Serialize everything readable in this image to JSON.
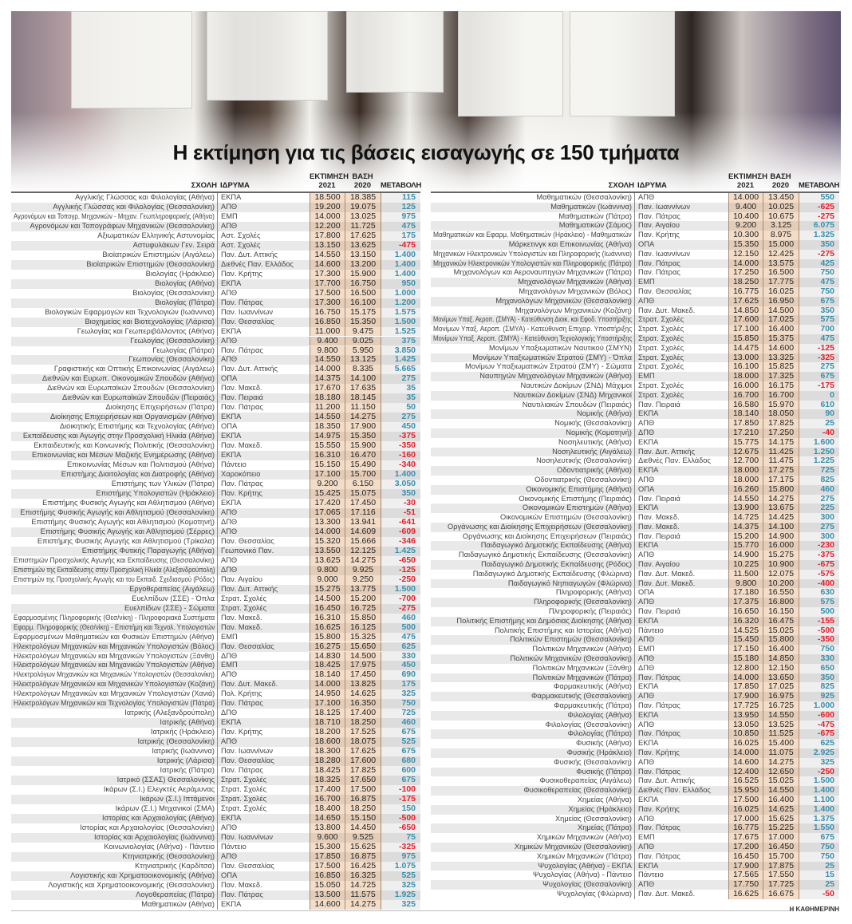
{
  "title": "Η εκτίμηση για τις βάσεις εισαγωγής σε 150 τμήματα",
  "headers": {
    "school": "ΣΧΟΛΗ",
    "institution": "ΙΔΡΥΜΑ",
    "estimate": "ΕΚΤΙΜΗΣΗ 2021",
    "base": "ΒΑΣΗ 2020",
    "change": "ΜΕΤΑΒΟΛΗ"
  },
  "colors": {
    "positive": "#3b8fac",
    "negative": "#e3202b",
    "estimate_column": "#f3ddc8"
  },
  "footer": "Η ΚΑΘΗΜΕΡΙΝΗ",
  "left_rows": [
    [
      "Αγγλικής Γλώσσας και Φιλολογίας (Αθήνα)",
      "ΕΚΠΑ",
      "18.500",
      "18.385",
      "115"
    ],
    [
      "Αγγλικής Γλώσσας και Φιλολογίας (Θεσσαλονίκη)",
      "ΑΠΘ",
      "19.200",
      "19.075",
      "125"
    ],
    [
      "Αγρονόμων και Τοπογρ. Μηχανικών - Μηχαν. Γεωπληροφορικής (Αθήνα)",
      "ΕΜΠ",
      "14.000",
      "13.025",
      "975"
    ],
    [
      "Αγρονόμων και Τοπογράφων Μηχανικών (Θεσσαλονίκη)",
      "ΑΠΘ",
      "12.200",
      "11.725",
      "475"
    ],
    [
      "Αξιωματικών Ελληνικής Αστυνομίας",
      "Αστ. Σχολές",
      "17.800",
      "17.625",
      "175"
    ],
    [
      "Αστυφυλάκων Γεν. Σειρά",
      "Αστ. Σχολές",
      "13.150",
      "13.625",
      "-475"
    ],
    [
      "Βιοϊατρικών Επιστημών (Αιγάλεω)",
      "Παν. Δυτ. Αττικής",
      "14.550",
      "13.150",
      "1.400"
    ],
    [
      "Βιοϊατρικών Επιστημών (Θεσσαλονίκη)",
      "Διεθνές Παν. Ελλάδος",
      "14.600",
      "13.200",
      "1.400"
    ],
    [
      "Βιολογίας  (Ηράκλειο)",
      "Παν. Κρήτης",
      "17.300",
      "15.900",
      "1.400"
    ],
    [
      "Βιολογίας (Αθήνα)",
      "ΕΚΠΑ",
      "17.700",
      "16.750",
      "950"
    ],
    [
      "Βιολογίας (Θεσσαλονίκη)",
      "ΑΠΘ",
      "17.500",
      "16.500",
      "1.000"
    ],
    [
      "Βιολογίας (Πάτρα)",
      "Παν. Πάτρας",
      "17.300",
      "16.100",
      "1.200"
    ],
    [
      "Βιολογικών Εφαρμογών και Τεχνολογιών (Ιωάννινα)",
      "Παν. Ιωαννίνων",
      "16.750",
      "15.175",
      "1.575"
    ],
    [
      "Βιοχημείας και Βιοτεχνολογίας (Λάρισα)",
      "Παν. Θεσσαλίας",
      "16.850",
      "15.350",
      "1.500"
    ],
    [
      "Γεωλογίας  και Γεωπεριβάλλοντος (Αθήνα)",
      "ΕΚΠΑ",
      "11.000",
      "9.475",
      "1.525"
    ],
    [
      "Γεωλογίας (Θεσσαλονίκη)",
      "ΑΠΘ",
      "9.400",
      "9.025",
      "375"
    ],
    [
      "Γεωλογίας (Πάτρα)",
      "Παν. Πάτρας",
      "9.800",
      "5.950",
      "3.850"
    ],
    [
      "Γεωπονίας (Θεσσαλονίκη)",
      "ΑΠΘ",
      "14.550",
      "13.125",
      "1.425"
    ],
    [
      "Γραφιστικής και Οπτικής Επικοινωνίας (Αιγάλεω)",
      "Παν. Δυτ. Αττικής",
      "14.000",
      "8.335",
      "5.665"
    ],
    [
      "Διεθνών και Ευρωπ. Οικονομικών Σπουδών (Αθήνα)",
      "ΟΠΑ",
      "14.375",
      "14.100",
      "275"
    ],
    [
      "Διεθνών και Ευρωπαϊκών Σπουδών (Θεσσαλονίκη)",
      "Παν. Μακεδ.",
      "17.670",
      "17.635",
      "35"
    ],
    [
      "Διεθνών και Ευρωπαϊκών Σπουδών (Πειραιάς)",
      "Παν. Πειραιά",
      "18.180",
      "18.145",
      "35"
    ],
    [
      "Διοίκησης Επιχειρήσεων (Πάτρα)",
      "Παν. Πάτρας",
      "11.200",
      "11.150",
      "50"
    ],
    [
      "Διοίκησης Επιχειρήσεων και Οργανισμών (Αθήνα)",
      "ΕΚΠΑ",
      "14.550",
      "14.275",
      "275"
    ],
    [
      "Διοικητικής Επιστήμης και Τεχνολογίας (Αθήνα)",
      "ΟΠΑ",
      "18.350",
      "17.900",
      "450"
    ],
    [
      "Εκπαίδευσης και Αγωγής στην Προσχολική Ηλικία (Αθήνα)",
      "ΕΚΠΑ",
      "14.975",
      "15.350",
      "-375"
    ],
    [
      "Εκπαιδευτικής και Κοινωνικής Πολιτικής (Θεσσαλονίκη)",
      "Παν. Μακεδ.",
      "15.550",
      "15.900",
      "-350"
    ],
    [
      "Επικοινωνίας και Μέσων Μαζικής Ενημέρωσης (Αθήνα)",
      "ΕΚΠΑ",
      "16.310",
      "16.470",
      "-160"
    ],
    [
      "Επικοινωνίας Μέσων και Πολιτισμού (Αθήνα)",
      "Πάντειο",
      "15.150",
      "15.490",
      "-340"
    ],
    [
      "Επιστήμης Διαιτολογίας και Διατροφής (Αθήνα)",
      "Χαροκόπειο",
      "17.100",
      "15.700",
      "1.400"
    ],
    [
      "Επιστήμης των Υλικών (Πάτρα)",
      "Παν. Πάτρας",
      "9.200",
      "6.150",
      "3.050"
    ],
    [
      "Επιστήμης Υπολογιστών (Ηράκλειο)",
      "Παν. Κρήτης",
      "15.425",
      "15.075",
      "350"
    ],
    [
      "Επιστήμης Φυσικής Αγωγής και Αθλητισμού (Αθήνα)",
      "ΕΚΠΑ",
      "17.420",
      "17.450",
      "-30"
    ],
    [
      "Επιστήμης Φυσικής Αγωγής και Αθλητισμού (Θεσσαλονίκη)",
      "ΑΠΘ",
      "17.065",
      "17.116",
      "-51"
    ],
    [
      "Επιστήμης Φυσικής Αγωγής και Αθλητισμού (Κομοτηνή)",
      "ΔΠΘ",
      "13.300",
      "13.941",
      "-641"
    ],
    [
      "Επιστήμης Φυσικής Αγωγής και Αθλητισμού (Σέρρες)",
      "ΑΠΘ",
      "14.000",
      "14.609",
      "-609"
    ],
    [
      "Επιστήμης Φυσικής Αγωγής και Αθλητισμού (Τρίκαλα)",
      "Παν. Θεσσαλίας",
      "15.320",
      "15.666",
      "-346"
    ],
    [
      "Επιστήμης Φυτικής Παραγωγής (Αθήνα)",
      "Γεωπονικό Παν.",
      "13.550",
      "12.125",
      "1.425"
    ],
    [
      "Επιστημών Προσχολικής Αγωγής και Εκπαίδευσης (Θεσσαλονίκη)",
      "ΑΠΘ",
      "13.625",
      "14.275",
      "-650"
    ],
    [
      "Επιστημών της Εκπαίδευσης στην Προσχολική Ηλικία (Αλεξανδρούπολη)",
      "ΔΠΘ",
      "9.800",
      "9.925",
      "-125"
    ],
    [
      "Επιστημών της Προσχολικής Αγωγής και του Εκπαιδ. Σχεδιασμού (Ρόδος)",
      "Παν. Αιγαίου",
      "9.000",
      "9.250",
      "-250"
    ],
    [
      "Εργοθεραπείας (Αιγάλεω)",
      "Παν. Δυτ. Αττικής",
      "15.275",
      "13.775",
      "1.500"
    ],
    [
      "Ευελπίδων (ΣΣΕ) - Όπλα",
      "Στρατ. Σχολές",
      "14.500",
      "15.200",
      "-700"
    ],
    [
      "Ευελπίδων (ΣΣΕ) - Σώματα",
      "Στρατ. Σχολές",
      "16.450",
      "16.725",
      "-275"
    ],
    [
      "Εφαρμοσμένης Πληροφορικής (Θεσ/νίκη) -  Πληροφοριακά Συστήματα",
      "Παν. Μακεδ.",
      "16.310",
      "15.850",
      "460"
    ],
    [
      "Εφαρμ. Πληροφορικής (Θεσ/νίκη) - Επιστήμη και Τεχνολ. Υπολογιστών",
      "Παν. Μακεδ.",
      "16.625",
      "16.125",
      "500"
    ],
    [
      "Εφαρμοσμένων Μαθηματικών και Φυσικών Επιστημών (Αθήνα)",
      "ΕΜΠ",
      "15.800",
      "15.325",
      "475"
    ],
    [
      "Ηλεκτρολόγων Μηχανικών και Μηχανικών Υπολογιστών (Βόλος)",
      "Παν. Θεσσαλίας",
      "16.275",
      "15.650",
      "625"
    ],
    [
      "Ηλεκτρολόγων Μηχανικών και Μηχανικών Υπολογιστών (Ξάνθη)",
      "ΔΠΘ",
      "14.830",
      "14.500",
      "330"
    ],
    [
      "Ηλεκτρολόγων Μηχανικών και Μηχανικών Υπολογιστών (Αθήνα)",
      "ΕΜΠ",
      "18.425",
      "17.975",
      "450"
    ],
    [
      "Ηλεκτρολόγων Μηχανικών και Μηχανικών Υπολογιστών (Θεσσαλονίκη)",
      "ΑΠΘ",
      "18.140",
      "17.450",
      "690"
    ],
    [
      "Ηλεκτρολόγων Μηχανικών και Μηχανικών Υπολογιστών (Κοζάνη)",
      "Παν. Δυτ. Μακεδ.",
      "14.000",
      "13.825",
      "175"
    ],
    [
      "Ηλεκτρολόγων Μηχανικών και Μηχανικών Υπολογιστών (Χανιά)",
      "Πολ. Κρήτης",
      "14.950",
      "14.625",
      "325"
    ],
    [
      "Ηλεκτρολόγων Μηχανικών και Τεχνολογίας Υπολογιστών (Πάτρα)",
      "Παν. Πάτρας",
      "17.100",
      "16.350",
      "750"
    ],
    [
      "Ιατρικής  (Αλεξανδρούπολη)",
      "ΔΠΘ",
      "18.125",
      "17.400",
      "725"
    ],
    [
      "Ιατρικής (Αθήνα)",
      "ΕΚΠΑ",
      "18.710",
      "18.250",
      "460"
    ],
    [
      "Ιατρικής (Ηράκλειο)",
      "Παν. Κρήτης",
      "18.200",
      "17.525",
      "675"
    ],
    [
      "Ιατρικής (Θεσσαλονίκη)",
      "ΑΠΘ",
      "18.600",
      "18.075",
      "525"
    ],
    [
      "Ιατρικής (Ιωάννινα)",
      "Παν. Ιωαννίνων",
      "18.300",
      "17.625",
      "675"
    ],
    [
      "Ιατρικής (Λάρισα)",
      "Παν. Θεσσαλίας",
      "18.280",
      "17.600",
      "680"
    ],
    [
      "Ιατρικής (Πάτρα)",
      "Παν. Πάτρας",
      "18.425",
      "17.825",
      "600"
    ],
    [
      "Ιατρικό (ΣΣΑΣ) Θεσσαλονίκης",
      "Στρατ. Σχολές",
      "18.325",
      "17.650",
      "675"
    ],
    [
      "Ικάρων (Σ.Ι.) Ελεγκτές Αεράμυνας",
      "Στρατ. Σχολές",
      "17.400",
      "17.500",
      "-100"
    ],
    [
      "Ικάρων (Σ.Ι.) Ιπτάμενοι",
      "Στρατ. Σχολές",
      "16.700",
      "16.875",
      "-175"
    ],
    [
      "Ικάρων (Σ.Ι.) Μηχανικοί (ΣΜΑ)",
      "Στρατ. Σχολές",
      "18.400",
      "18.250",
      "150"
    ],
    [
      "Ιστορίας και Αρχαιολογίας (Αθήνα)",
      "ΕΚΠΑ",
      "14.650",
      "15.150",
      "-500"
    ],
    [
      "Ιστορίας και Αρχαιολογίας (Θεσσαλονίκη)",
      "ΑΠΘ",
      "13.800",
      "14.450",
      "-650"
    ],
    [
      "Ιστορίας και Αρχαιολογίας (Ιωάννινα)",
      "Παν. Ιωαννίνων",
      "9.600",
      "9.525",
      "75"
    ],
    [
      "Κοινωνιολογίας (Αθήνα) - Πάντειο",
      "Πάντειο",
      "15.300",
      "15.625",
      "-325"
    ],
    [
      "Κτηνιατρικής (Θεσσαλονίκη)",
      "ΑΠΘ",
      "17.850",
      "16.875",
      "975"
    ],
    [
      "Κτηνιατρικής (Καρδίτσα)",
      "Παν. Θεσσαλίας",
      "17.500",
      "16.425",
      "1.075"
    ],
    [
      "Λογιστικής και Χρηματοοικονομικής (Αθήνα)",
      "ΟΠΑ",
      "16.850",
      "16.325",
      "525"
    ],
    [
      "Λογιστικής και Χρηματοοικονομικής (Θεσσαλονίκη)",
      "Παν. Μακεδ.",
      "15.050",
      "14.725",
      "325"
    ],
    [
      "Λογοθεραπείας (Πάτρα)",
      "Παν. Πάτρας",
      "13.500",
      "11.575",
      "1.925"
    ],
    [
      "Μαθηματικών (Αθήνα)",
      "ΕΚΠΑ",
      "14.600",
      "14.275",
      "325"
    ]
  ],
  "right_rows": [
    [
      "Μαθηματικών (Θεσσαλονίκη)",
      "ΑΠΘ",
      "14.000",
      "13.450",
      "550"
    ],
    [
      "Μαθηματικών (Ιωάννινα)",
      "Παν. Ιωαννίνων",
      "9.400",
      "10.025",
      "-625"
    ],
    [
      "Μαθηματικών (Πάτρα)",
      "Παν. Πάτρας",
      "10.400",
      "10.675",
      "-275"
    ],
    [
      "Μαθηματικών (Σάμος)",
      "Παν. Αιγαίου",
      "9.200",
      "3.125",
      "6.075"
    ],
    [
      "Μαθηματικών και Εφαρμ. Μαθηματικών (Ηράκλειο) - Μαθηματικών",
      "Παν. Κρήτης",
      "10.300",
      "8.975",
      "1.325"
    ],
    [
      "Μάρκετινγκ και Επικοινωνίας (Αθήνα)",
      "ΟΠΑ",
      "15.350",
      "15.000",
      "350"
    ],
    [
      "Μηχανικών Ηλεκτρονικών Υπολογιστών και Πληροφορικής (Ιωάννινα)",
      "Παν. Ιωαννίνων",
      "12.150",
      "12.425",
      "-275"
    ],
    [
      "Μηχανικών Ηλεκτρονικών Υπολογιστών και Πληροφορικής (Πάτρα)",
      "Παν. Πάτρας",
      "14.000",
      "13.575",
      "425"
    ],
    [
      "Μηχανολόγων και Αεροναυπηγών Μηχανικών (Πάτρα)",
      "Παν. Πάτρας",
      "17.250",
      "16.500",
      "750"
    ],
    [
      "Μηχανολόγων Μηχανικών (Αθήνα)",
      "ΕΜΠ",
      "18.250",
      "17.775",
      "475"
    ],
    [
      "Μηχανολόγων Μηχανικών (Βόλος)",
      "Παν. Θεσσαλίας",
      "16.775",
      "16.025",
      "750"
    ],
    [
      "Μηχανολόγων Μηχανικών (Θεσσαλονίκη)",
      "ΑΠΘ",
      "17.625",
      "16.950",
      "675"
    ],
    [
      "Μηχανολόγων Μηχανικών (Κοζάνη)",
      "Παν. Δυτ. Μακεδ.",
      "14.850",
      "14.500",
      "350"
    ],
    [
      "Μονίμων Υπαξ. Αεροπ. (ΣΜΥΑ) - Κατεύθυνση Διοικ. και Εφοδ. Υποστήριξης",
      "Στρατ. Σχολές",
      "17.600",
      "17.025",
      "575"
    ],
    [
      "Μονίμων Υπαξ. Αεροπ. (ΣΜΥΑ) - Κατεύθυνση Επιχειρ. Υποστήριξης",
      "Στρατ. Σχολές",
      "17.100",
      "16.400",
      "700"
    ],
    [
      "Μονίμων Υπαξ. Αεροπ. (ΣΜΥΑ) - Κατεύθυνση Τεχνολογικής Υποστήριξης",
      "Στρατ. Σχολές",
      "15.850",
      "15.375",
      "475"
    ],
    [
      "Μονίμων Υπαξιωματικών Ναυτικού (ΣΜΥΝ)",
      "Στρατ. Σχολές",
      "14.475",
      "14.600",
      "-125"
    ],
    [
      "Μονίμων Υπαξιωματικών Στρατού (ΣΜΥ) - Όπλα",
      "Στρατ. Σχολές",
      "13.000",
      "13.325",
      "-325"
    ],
    [
      "Μονίμων Υπαξιωματικών Στρατού (ΣΜΥ) - Σώματα",
      "Στρατ. Σχολές",
      "16.100",
      "15.825",
      "275"
    ],
    [
      "Ναυπηγών Μηχανολόγων Μηχανικών (Αθήνα)",
      "ΕΜΠ",
      "18.000",
      "17.325",
      "675"
    ],
    [
      "Ναυτικών Δοκίμων (ΣΝΔ) Μάχιμοι",
      "Στρατ. Σχολές",
      "16.000",
      "16.175",
      "-175"
    ],
    [
      "Ναυτικών Δοκίμων (ΣΝΔ) Μηχανικοί",
      "Στρατ. Σχολές",
      "16.700",
      "16.700",
      "0"
    ],
    [
      "Ναυτιλιακών Σπουδών (Πειραιάς)",
      "Παν. Πειραιά",
      "16.580",
      "15.970",
      "610"
    ],
    [
      "Νομικής (Αθήνα)",
      "ΕΚΠΑ",
      "18.140",
      "18.050",
      "90"
    ],
    [
      "Νομικής (Θεσσαλονίκη)",
      "ΑΠΘ",
      "17.850",
      "17.825",
      "25"
    ],
    [
      "Νομικής (Κομοτηνή)",
      "ΔΠΘ",
      "17.210",
      "17.250",
      "-40"
    ],
    [
      "Νοσηλευτικής (Αθήνα)",
      "ΕΚΠΑ",
      "15.775",
      "14.175",
      "1.600"
    ],
    [
      "Νοσηλευτικής (Αιγάλεω)",
      "Παν. Δυτ. Αττικής",
      "12.675",
      "11.425",
      "1.250"
    ],
    [
      "Νοσηλευτικής (Θεσσαλονίκη)",
      "Διεθνές Παν. Ελλάδος",
      "12.700",
      "11.475",
      "1.225"
    ],
    [
      "Οδοντιατρικής (Αθήνα)",
      "ΕΚΠΑ",
      "18.000",
      "17.275",
      "725"
    ],
    [
      "Οδοντιατρικής (Θεσσαλονίκη)",
      "ΑΠΘ",
      "18.000",
      "17.175",
      "825"
    ],
    [
      "Οικονομικής Επιστήμης (Αθήνα)",
      "ΟΠΑ",
      "16.260",
      "15.800",
      "460"
    ],
    [
      "Οικονομικής Επιστήμης (Πειραιάς)",
      "Παν. Πειραιά",
      "14.550",
      "14.275",
      "275"
    ],
    [
      "Οικονομικών Επιστημών (Αθήνα)",
      "ΕΚΠΑ",
      "13.900",
      "13.675",
      "225"
    ],
    [
      "Οικονομικών Επιστημών (Θεσσαλονίκη)",
      "Παν. Μακεδ.",
      "14.725",
      "14.425",
      "300"
    ],
    [
      "Οργάνωσης και Διοίκησης Επιχειρήσεων (Θεσσαλονίκη)",
      "Παν. Μακεδ.",
      "14.375",
      "14.100",
      "275"
    ],
    [
      "Οργάνωσης και Διοίκησης Επιχειρήσεων (Πειραιάς)",
      "Παν. Πειραιά",
      "15.200",
      "14.900",
      "300"
    ],
    [
      "Παιδαγωγικό Δημοτικής Εκπαίδευσης (Αθήνα)",
      "ΕΚΠΑ",
      "15.770",
      "16.000",
      "-230"
    ],
    [
      "Παιδαγωγικό Δημοτικής Εκπαίδευσης (Θεσσαλονίκη)",
      "ΑΠΘ",
      "14.900",
      "15.275",
      "-375"
    ],
    [
      "Παιδαγωγικό Δημοτικής Εκπαίδευσης (Ρόδος)",
      "Παν. Αιγαίου",
      "10.225",
      "10.900",
      "-675"
    ],
    [
      "Παιδαγωγικό Δημοτικής Εκπαίδευσης (Φλώρινα)",
      "Παν. Δυτ. Μακεδ.",
      "11.500",
      "12.075",
      "-575"
    ],
    [
      "Παιδαγωγικό Νηπιαγωγών (Φλώρινα)",
      "Παν. Δυτ. Μακεδ.",
      "9.800",
      "10.200",
      "-400"
    ],
    [
      "Πληροφορικής (Αθήνα)",
      "ΟΠΑ",
      "17.180",
      "16.550",
      "630"
    ],
    [
      "Πληροφορικής (Θεσσαλονίκη)",
      "ΑΠΘ",
      "17.375",
      "16.800",
      "575"
    ],
    [
      "Πληροφορικής (Πειραιάς)",
      "Παν. Πειραιά",
      "16.650",
      "16.150",
      "500"
    ],
    [
      "Πολιτικής Επιστήμης και Δημόσιας Διοίκησης (Αθήνα)",
      "ΕΚΠΑ",
      "16.320",
      "16.475",
      "-155"
    ],
    [
      "Πολιτικής Επιστήμης και Ιστορίας (Αθήνα)",
      "Πάντειο",
      "14.525",
      "15.025",
      "-500"
    ],
    [
      "Πολιτικών Επιστημών (Θεσσαλονίκη)",
      "ΑΠΘ",
      "15.450",
      "15.800",
      "-350"
    ],
    [
      "Πολιτικών Μηχανικών (Αθήνα)",
      "ΕΜΠ",
      "17.150",
      "16.400",
      "750"
    ],
    [
      "Πολιτικών Μηχανικών (Θεσσαλονίκη)",
      "ΑΠΘ",
      "15.180",
      "14.850",
      "330"
    ],
    [
      "Πολιτικών Μηχανικών (Ξάνθη)",
      "ΔΠΘ",
      "12.800",
      "12.150",
      "650"
    ],
    [
      "Πολιτικών Μηχανικών (Πάτρα)",
      "Παν. Πάτρας",
      "14.000",
      "13.650",
      "350"
    ],
    [
      "Φαρμακευτικής (Αθήνα)",
      "ΕΚΠΑ",
      "17.850",
      "17.025",
      "825"
    ],
    [
      "Φαρμακευτικής (Θεσσαλονίκη)",
      "ΑΠΘ",
      "17.900",
      "16.975",
      "925"
    ],
    [
      "Φαρμακευτικής (Πάτρα)",
      "Παν. Πάτρας",
      "17.725",
      "16.725",
      "1.000"
    ],
    [
      "Φιλολογίας (Αθήνα)",
      "ΕΚΠΑ",
      "13.950",
      "14.550",
      "-600"
    ],
    [
      "Φιλολογίας (Θεσσαλονίκη)",
      "ΑΠΘ",
      "13.050",
      "13.525",
      "-475"
    ],
    [
      "Φιλολογίας (Πάτρα)",
      "Παν. Πάτρας",
      "10.850",
      "11.525",
      "-675"
    ],
    [
      "Φυσικής (Αθήνα)",
      "ΕΚΠΑ",
      "16.025",
      "15.400",
      "625"
    ],
    [
      "Φυσικής (Ηράκλειο)",
      "Παν. Κρήτης",
      "14.000",
      "11.075",
      "2.925"
    ],
    [
      "Φυσικής (Θεσσαλονίκη)",
      "ΑΠΘ",
      "14.600",
      "14.275",
      "325"
    ],
    [
      "Φυσικής (Πάτρα)",
      "Παν. Πάτρας",
      "12.400",
      "12.650",
      "-250"
    ],
    [
      "Φυσικοθεραπείας (Αιγάλεω)",
      "Παν. Δυτ. Αττικής",
      "16.525",
      "15.025",
      "1.500"
    ],
    [
      "Φυσικοθεραπείας (Θεσσαλονίκη)",
      "Διεθνές Παν. Ελλάδος",
      "15.950",
      "14.550",
      "1.400"
    ],
    [
      "Χημείας (Αθήνα)",
      "ΕΚΠΑ",
      "17.500",
      "16.400",
      "1.100"
    ],
    [
      "Χημείας (Ηράκλειο)",
      "Παν. Κρήτης",
      "16.025",
      "14.625",
      "1.400"
    ],
    [
      "Χημείας (Θεσσαλονίκη)",
      "ΑΠΘ",
      "17.000",
      "15.625",
      "1.375"
    ],
    [
      "Χημείας (Πάτρα)",
      "Παν. Πάτρας",
      "16.775",
      "15.225",
      "1.550"
    ],
    [
      "Χημικών Μηχανικών (Αθήνα)",
      "ΕΜΠ",
      "17.675",
      "17.000",
      "675"
    ],
    [
      "Χημικών Μηχανικών (Θεσσαλονίκη)",
      "ΑΠΘ",
      "17.200",
      "16.450",
      "750"
    ],
    [
      "Χημικών Μηχανικών (Πάτρα)",
      "Παν. Πάτρας",
      "16.450",
      "15.700",
      "750"
    ],
    [
      "Ψυχολογίας (Αθήνα) - ΕΚΠΑ",
      "ΕΚΠΑ",
      "17.900",
      "17.875",
      "25"
    ],
    [
      "Ψυχολογίας (Αθήνα) - Πάντειο",
      "Πάντειο",
      "17.565",
      "17.550",
      "15"
    ],
    [
      "Ψυχολογίας (Θεσσαλονίκη)",
      "ΑΠΘ",
      "17.750",
      "17.725",
      "25"
    ],
    [
      "Ψυχολογίας (Φλώρινα)",
      "Παν. Δυτ. Μακεδ.",
      "16.625",
      "16.675",
      "-50"
    ]
  ]
}
